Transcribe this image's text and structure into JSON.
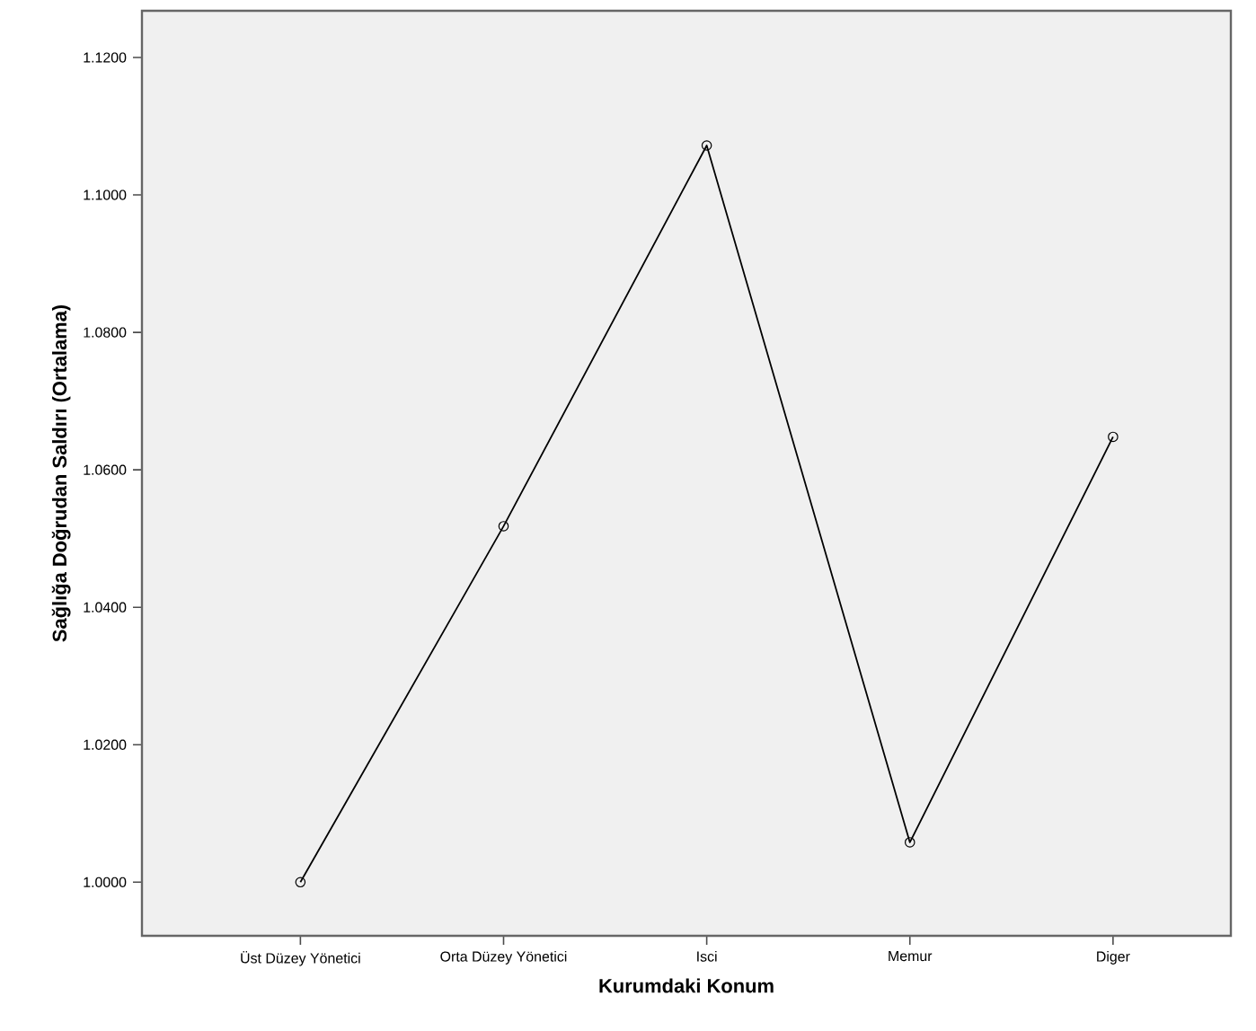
{
  "chart_data": {
    "type": "line",
    "xlabel": "Kurumdaki Konum",
    "ylabel": "Sağlığa Doğrudan Saldırı (Ortalama)",
    "categories": [
      "Üst Düzey Yönetici",
      "Orta Düzey Yönetici",
      "Isci",
      "Memur",
      "Diger"
    ],
    "series": [
      {
        "color": "#000000",
        "values": [
          1.0,
          1.0518,
          1.1072,
          1.0058,
          1.0648
        ]
      }
    ],
    "marker": "circle",
    "grid": false,
    "ylim": [
      0.9922,
      1.1268
    ],
    "yticks": [
      {
        "value": 1.0,
        "label": "1.0000"
      },
      {
        "value": 1.02,
        "label": "1.0200"
      },
      {
        "value": 1.04,
        "label": "1.0400"
      },
      {
        "value": 1.06,
        "label": "1.0600"
      },
      {
        "value": 1.08,
        "label": "1.0800"
      },
      {
        "value": 1.1,
        "label": "1.1000"
      },
      {
        "value": 1.12,
        "label": "1.1200"
      }
    ]
  }
}
